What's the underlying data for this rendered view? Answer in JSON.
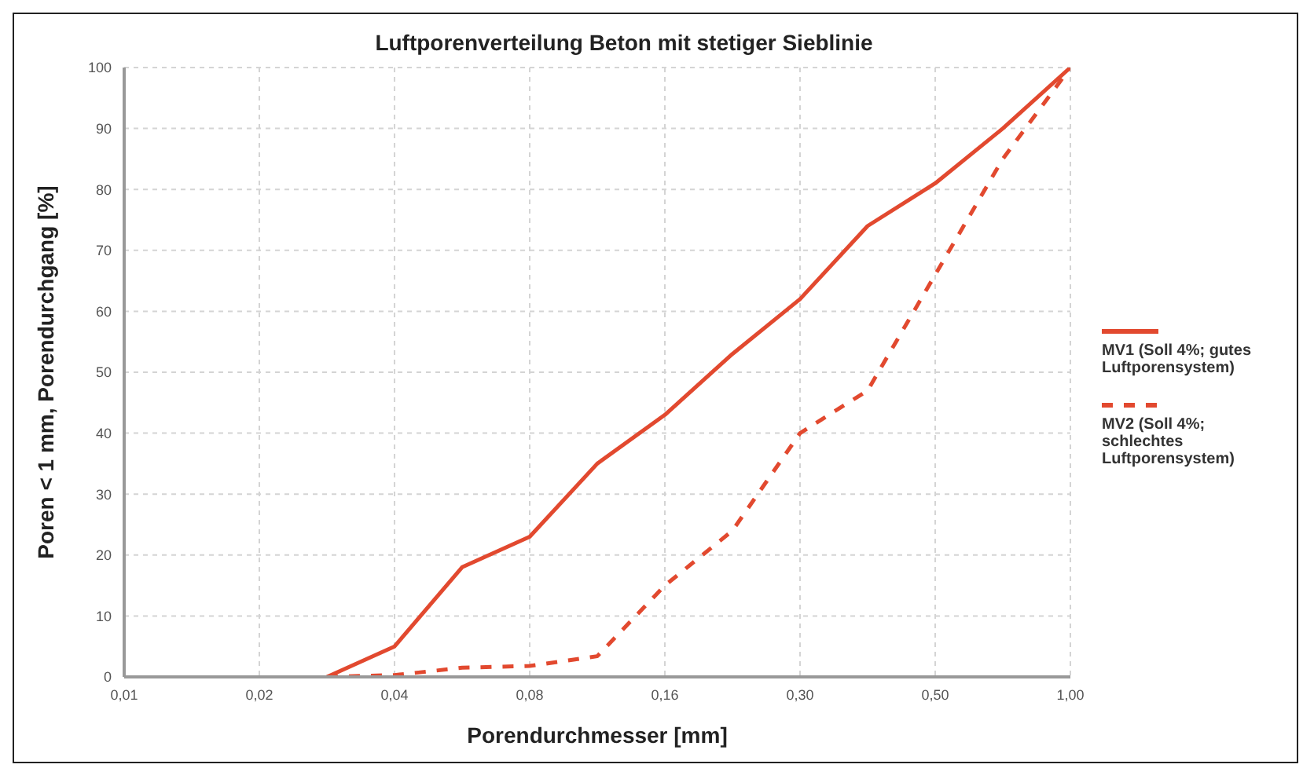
{
  "chart_data": {
    "type": "line",
    "title": "Luftporenverteilung Beton mit stetiger Sieblinie",
    "xlabel": "Porendurchmesser [mm]",
    "ylabel": "Poren < 1 mm, Porendurchgang [%]",
    "categories": [
      "0,01",
      null,
      "0,02",
      null,
      "0,04",
      null,
      "0,08",
      null,
      "0,16",
      null,
      "0,30",
      null,
      "0,50",
      null,
      "1,00"
    ],
    "series": [
      {
        "name": "MV1 (Soll 4%; gutes Luftporensystem)",
        "color": "#e2492f",
        "line_style": "solid",
        "values": [
          null,
          null,
          null,
          0,
          5,
          18,
          23,
          35,
          43,
          53,
          62,
          74,
          81,
          90,
          100
        ]
      },
      {
        "name": "MV2 (Soll 4%; schlechtes Luftporensystem)",
        "color": "#e2492f",
        "line_style": "dashed",
        "values": [
          null,
          null,
          null,
          0,
          0.3,
          1.5,
          1.8,
          3.4,
          15,
          24,
          40,
          47,
          66,
          85,
          100
        ]
      }
    ],
    "ylim": [
      0,
      100
    ],
    "yticks": [
      0,
      10,
      20,
      30,
      40,
      50,
      60,
      70,
      80,
      90,
      100
    ],
    "grid": true,
    "legend": "right",
    "marker": "none"
  }
}
